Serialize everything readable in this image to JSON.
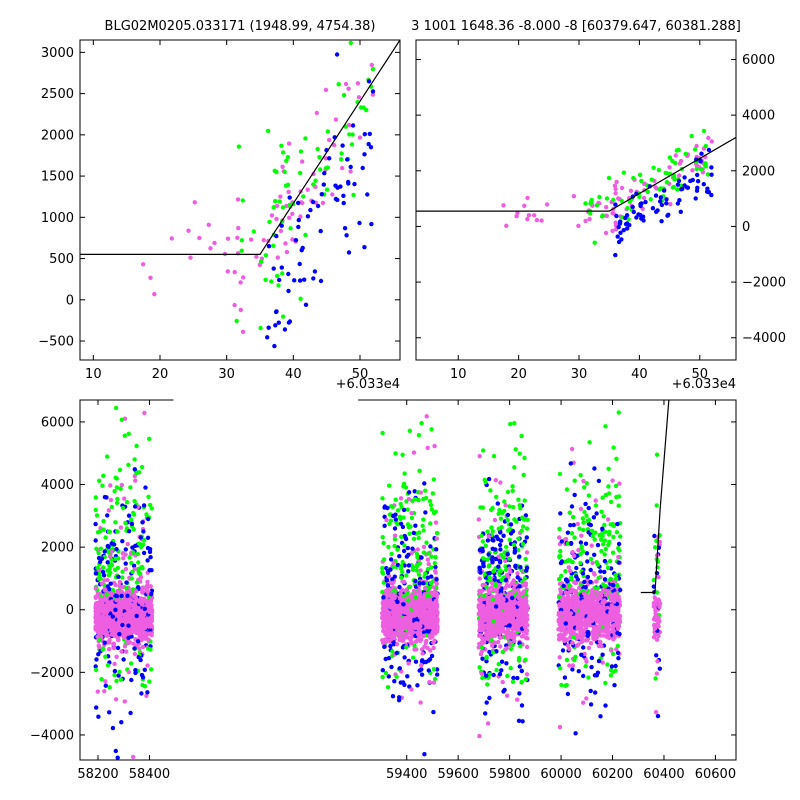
{
  "colors": {
    "green": "#00ff00",
    "blue": "#0000ff",
    "pink": "#ee5ee0",
    "line": "#000000"
  },
  "chart_data": [
    {
      "id": "top-left",
      "type": "scatter",
      "title": "BLG02M0205.033171 (1948.99, 4754.38)",
      "x_offset_label": "+6.033e4",
      "xlim": [
        8,
        56
      ],
      "ylim": [
        -730,
        3150
      ],
      "xticks": [
        10,
        20,
        30,
        40,
        50
      ],
      "yticks": [
        -500,
        0,
        500,
        1000,
        1500,
        2000,
        2500,
        3000
      ],
      "yaxis_side": "left",
      "model_line": {
        "x": [
          8,
          35,
          56
        ],
        "y": [
          550,
          550,
          3150
        ]
      }
    },
    {
      "id": "top-right",
      "type": "scatter",
      "title": "3 1001 1648.36 -8.000 -8 [60379.647, 60381.288]",
      "x_offset_label": "+6.033e4",
      "xlim": [
        3,
        56
      ],
      "ylim": [
        -4800,
        6700
      ],
      "xticks": [
        10,
        20,
        30,
        40,
        50
      ],
      "yticks": [
        -4000,
        -2000,
        0,
        2000,
        4000,
        6000
      ],
      "yaxis_side": "right",
      "model_line": {
        "x": [
          3,
          35,
          56
        ],
        "y": [
          550,
          550,
          3200
        ]
      }
    },
    {
      "id": "bottom",
      "type": "scatter",
      "title": "",
      "xlim": [
        58130,
        60680
      ],
      "ylim": [
        -4800,
        6700
      ],
      "xticks": [
        58200,
        58400,
        59400,
        59600,
        59800,
        60000,
        60200,
        60400,
        60600
      ],
      "yticks": [
        -4000,
        -2000,
        0,
        2000,
        4000,
        6000
      ],
      "yaxis_side": "left",
      "axis_break": [
        58470,
        59250
      ],
      "seasons": [
        [
          58190,
          58410
        ],
        [
          59305,
          59520
        ],
        [
          59680,
          59870
        ],
        [
          59990,
          60230
        ],
        [
          60360,
          60385
        ]
      ],
      "model_line": {
        "x": [
          60310,
          60365,
          60385,
          60420
        ],
        "y": [
          550,
          550,
          3200,
          6800
        ]
      }
    }
  ]
}
